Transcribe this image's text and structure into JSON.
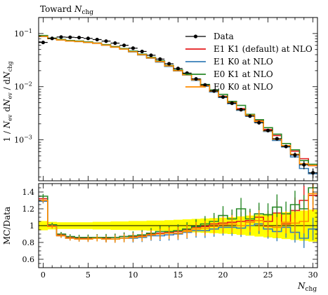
{
  "chart_data": {
    "type": "line",
    "title": "Toward N_chg",
    "title_main": "Toward ",
    "title_var": "N",
    "title_sub": "chg",
    "xlabel_var": "N",
    "xlabel_sub": "chg",
    "top_ylabel": "1 / N_ev dN_ev / dN_chg",
    "bottom_ylabel": "MC/Data",
    "xlim": [
      -0.5,
      30.5
    ],
    "top_ylim": [
      0.00017,
      0.2
    ],
    "top_yscale": "log",
    "bottom_ylim": [
      0.5,
      1.5
    ],
    "x_ticks": [
      0,
      5,
      10,
      15,
      20,
      25,
      30
    ],
    "x_tick_labels": [
      "0",
      "5",
      "10",
      "15",
      "20",
      "25",
      "30"
    ],
    "top_y_ticks": [
      0.1,
      0.01,
      0.001
    ],
    "top_y_tick_labels": [
      "10",
      "10",
      "10"
    ],
    "top_y_tick_exps": [
      "−1",
      "−2",
      "−3"
    ],
    "bottom_y_ticks": [
      0.6,
      0.8,
      1.0,
      1.2,
      1.4
    ],
    "bottom_y_tick_labels": [
      "0.6",
      "0.8",
      "1",
      "1.2",
      "1.4"
    ],
    "legend_placement": "top-right",
    "legend": [
      "Data",
      "E1 K1 (default) at NLO",
      "E1 K0 at NLO",
      "E0 K1 at NLO",
      "E0 K0 at NLO"
    ],
    "x": [
      0,
      1,
      2,
      3,
      4,
      5,
      6,
      7,
      8,
      9,
      10,
      11,
      12,
      13,
      14,
      15,
      16,
      17,
      18,
      19,
      20,
      21,
      22,
      23,
      24,
      25,
      26,
      27,
      28,
      29,
      30
    ],
    "data": {
      "name": "Data",
      "values": [
        0.068,
        0.081,
        0.086,
        0.085,
        0.084,
        0.081,
        0.077,
        0.072,
        0.066,
        0.06,
        0.053,
        0.046,
        0.039,
        0.033,
        0.027,
        0.022,
        0.018,
        0.014,
        0.0108,
        0.0083,
        0.0064,
        0.0049,
        0.0037,
        0.0028,
        0.0021,
        0.0015,
        0.00105,
        0.00075,
        0.00052,
        0.00034,
        0.00024
      ],
      "errors": [
        0.002,
        0.002,
        0.002,
        0.002,
        0.002,
        0.002,
        0.002,
        0.002,
        0.002,
        0.0015,
        0.0012,
        0.001,
        0.0009,
        0.0008,
        0.0006,
        0.0005,
        0.0004,
        0.0003,
        0.00025,
        0.0002,
        0.00016,
        0.00013,
        0.0001,
        8e-05,
        7e-05,
        6e-05,
        5e-05,
        5e-05,
        6e-05,
        6e-05,
        5e-05
      ]
    },
    "series": [
      {
        "name": "E1 K1 (default) at NLO",
        "color": "#e41a1c",
        "ratio": [
          1.32,
          1.0,
          0.89,
          0.86,
          0.85,
          0.85,
          0.86,
          0.85,
          0.86,
          0.87,
          0.87,
          0.88,
          0.9,
          0.91,
          0.92,
          0.93,
          0.95,
          0.98,
          0.99,
          1.02,
          1.03,
          1.04,
          1.05,
          1.06,
          1.1,
          1.05,
          1.15,
          1.02,
          1.18,
          1.3,
          1.36
        ]
      },
      {
        "name": "E1 K0 at NLO",
        "color": "#377eb8",
        "ratio": [
          1.29,
          0.99,
          0.88,
          0.85,
          0.84,
          0.84,
          0.85,
          0.84,
          0.84,
          0.85,
          0.85,
          0.86,
          0.88,
          0.88,
          0.89,
          0.9,
          0.92,
          0.94,
          0.94,
          0.96,
          0.98,
          0.98,
          0.97,
          1.0,
          1.02,
          0.96,
          0.93,
          0.98,
          0.92,
          0.85,
          0.96
        ]
      },
      {
        "name": "E0 K1 at NLO",
        "color": "#2a8a2a",
        "ratio": [
          1.35,
          1.01,
          0.9,
          0.87,
          0.86,
          0.86,
          0.86,
          0.86,
          0.86,
          0.87,
          0.88,
          0.89,
          0.91,
          0.93,
          0.93,
          0.94,
          0.96,
          0.99,
          1.02,
          1.05,
          1.12,
          1.08,
          1.2,
          1.08,
          1.14,
          1.13,
          1.22,
          1.14,
          1.25,
          1.2,
          1.45
        ]
      },
      {
        "name": "E0 K0 at NLO",
        "color": "#ff8c00",
        "ratio": [
          1.3,
          0.99,
          0.88,
          0.85,
          0.84,
          0.84,
          0.85,
          0.84,
          0.84,
          0.85,
          0.86,
          0.87,
          0.89,
          0.9,
          0.91,
          0.91,
          0.93,
          0.96,
          0.97,
          0.99,
          1.01,
          1.02,
          1.0,
          1.04,
          1.06,
          0.99,
          0.98,
          1.04,
          1.03,
          1.05,
          1.38
        ]
      }
    ],
    "uncertainty_band": {
      "color": "#ffff00",
      "half_width": [
        0.055,
        0.045,
        0.04,
        0.04,
        0.04,
        0.04,
        0.045,
        0.045,
        0.05,
        0.05,
        0.055,
        0.055,
        0.06,
        0.06,
        0.065,
        0.07,
        0.075,
        0.08,
        0.085,
        0.09,
        0.095,
        0.1,
        0.11,
        0.12,
        0.13,
        0.14,
        0.15,
        0.16,
        0.17,
        0.18,
        0.19
      ]
    }
  }
}
